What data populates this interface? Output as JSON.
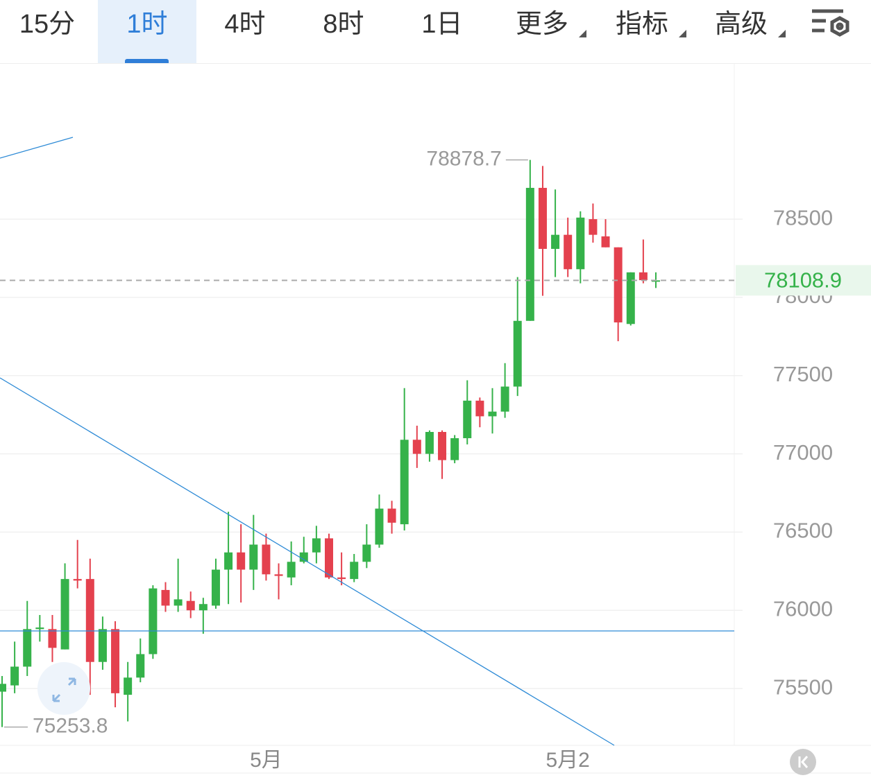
{
  "toolbar": {
    "tabs": [
      "15分",
      "1时",
      "4时",
      "8时",
      "1日",
      "更多",
      "指标",
      "高级"
    ]
  },
  "chart_data": {
    "type": "candlestick",
    "categories": [
      null,
      null,
      null,
      null,
      null,
      null,
      null,
      null,
      null,
      null,
      null,
      null,
      null,
      null,
      null,
      null,
      null,
      null,
      null,
      null,
      null,
      "5月",
      null,
      null,
      null,
      null,
      null,
      null,
      null,
      null,
      null,
      null,
      null,
      null,
      null,
      null,
      null,
      null,
      null,
      null,
      null,
      null,
      null,
      null,
      null,
      "5月2",
      null,
      null,
      null,
      null,
      null,
      null,
      null
    ],
    "open": [
      75480,
      75520,
      75640,
      75880,
      75880,
      75750,
      76200,
      76200,
      75670,
      75880,
      75460,
      75570,
      75720,
      76130,
      76030,
      76060,
      76000,
      76030,
      76260,
      76370,
      76260,
      76420,
      76230,
      76210,
      76310,
      76370,
      76460,
      76210,
      76200,
      76310,
      76420,
      76650,
      76550,
      77090,
      77000,
      77140,
      76960,
      77100,
      77340,
      77240,
      77270,
      77430,
      77850,
      78700,
      78310,
      78400,
      78180,
      78500,
      78390,
      78320,
      77830,
      78160,
      78100
    ],
    "high": [
      75580,
      75800,
      76060,
      75970,
      75970,
      76300,
      76450,
      76330,
      75960,
      75930,
      75670,
      75820,
      76160,
      76180,
      76330,
      76120,
      76080,
      76330,
      76630,
      76550,
      76610,
      76490,
      76300,
      76440,
      76470,
      76540,
      76490,
      76370,
      76360,
      76550,
      76740,
      76700,
      77420,
      77180,
      77150,
      77150,
      77120,
      77470,
      77360,
      77420,
      77580,
      78130,
      78878.7,
      78840,
      78690,
      78510,
      78550,
      78600,
      78500,
      78320,
      78160,
      78370,
      78160
    ],
    "low": [
      75253.8,
      75470,
      75580,
      75800,
      75670,
      75750,
      76140,
      75460,
      75620,
      75380,
      75290,
      75540,
      75690,
      75990,
      75990,
      75950,
      75850,
      76010,
      76040,
      76050,
      76130,
      76190,
      76070,
      76160,
      76300,
      76300,
      76200,
      76160,
      76180,
      76270,
      76400,
      76490,
      76510,
      76910,
      76950,
      76840,
      76940,
      77060,
      77170,
      77130,
      77230,
      77370,
      77850,
      78010,
      78130,
      78130,
      78090,
      78350,
      78320,
      77720,
      77820,
      78090,
      78060
    ],
    "close": [
      75530,
      75640,
      75880,
      75890,
      75760,
      76200,
      76190,
      75670,
      75880,
      75470,
      75570,
      75720,
      76140,
      76030,
      76070,
      76000,
      76040,
      76260,
      76370,
      76260,
      76420,
      76230,
      76220,
      76310,
      76370,
      76460,
      76210,
      76200,
      76310,
      76420,
      76650,
      76560,
      77090,
      77000,
      77140,
      76960,
      77100,
      77340,
      77240,
      77270,
      77430,
      77850,
      78700,
      78310,
      78400,
      78180,
      78510,
      78400,
      78320,
      77840,
      78160,
      78110,
      78108.9
    ],
    "colors": {
      "up": "#35b24a",
      "down": "#e4414e"
    },
    "ylim": [
      75137,
      79493
    ],
    "yticks": [
      75500,
      76000,
      76500,
      77000,
      77500,
      78000,
      78500
    ],
    "grid": true
  }
}
